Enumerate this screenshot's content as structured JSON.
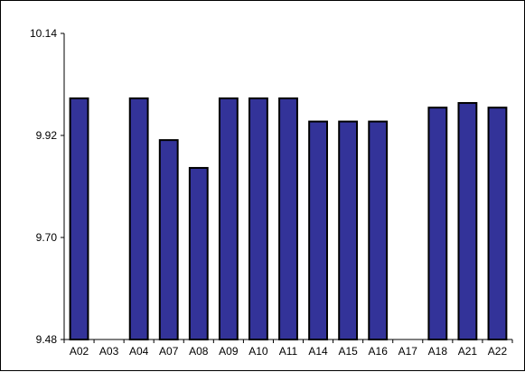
{
  "chart_data": {
    "type": "bar",
    "title": "",
    "xlabel": "",
    "ylabel": "",
    "categories": [
      "A02",
      "A03",
      "A04",
      "A07",
      "A08",
      "A09",
      "A10",
      "A11",
      "A14",
      "A15",
      "A16",
      "A17",
      "A18",
      "A21",
      "A22"
    ],
    "values": [
      10.0,
      null,
      10.0,
      9.91,
      9.85,
      10.0,
      10.0,
      10.0,
      9.95,
      9.95,
      9.95,
      null,
      9.98,
      9.99,
      9.98
    ],
    "ylim": [
      9.48,
      10.14
    ],
    "yticks": [
      9.48,
      9.7,
      9.92,
      10.14
    ],
    "ytick_labels": [
      "9.48",
      "9.70",
      "9.92",
      "10.14"
    ],
    "grid": false,
    "legend": "none",
    "colors": {
      "bar_fill": "#333399",
      "bar_stroke": "#000000",
      "axis": "#000000",
      "background": "#ffffff"
    }
  }
}
